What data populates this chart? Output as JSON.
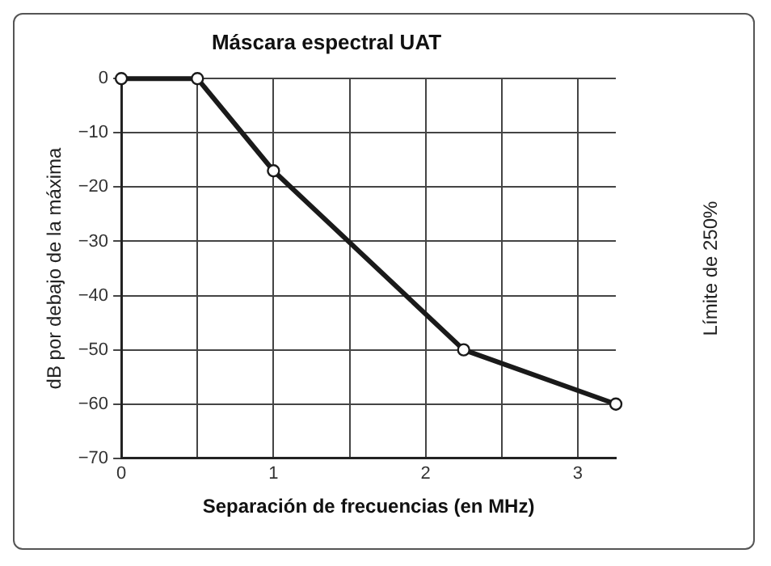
{
  "chart_data": {
    "type": "line",
    "title": "Máscara espectral UAT",
    "xlabel": "Separación de frecuencias (en MHz)",
    "ylabel": "dB por debajo de la máxima",
    "y2label": "Límite de 250%",
    "x": [
      0,
      0.5,
      1,
      2.25,
      3.25
    ],
    "series": [
      {
        "color": "#1a1a1a",
        "values": [
          0,
          0,
          -17,
          -50,
          -60
        ]
      }
    ],
    "xlim": [
      0,
      3.25
    ],
    "xticks": [
      0,
      {
        "value": 0.5,
        "label": null
      },
      1,
      {
        "value": 1.5,
        "label": null
      },
      2,
      {
        "value": 2.5,
        "label": null
      },
      3
    ],
    "ylim": [
      -70,
      0
    ],
    "yticks": [
      -70,
      -60,
      -50,
      -40,
      -30,
      -20,
      -10,
      0
    ],
    "grid": true,
    "legend": false,
    "marker": "circle",
    "line_style": "solid"
  }
}
